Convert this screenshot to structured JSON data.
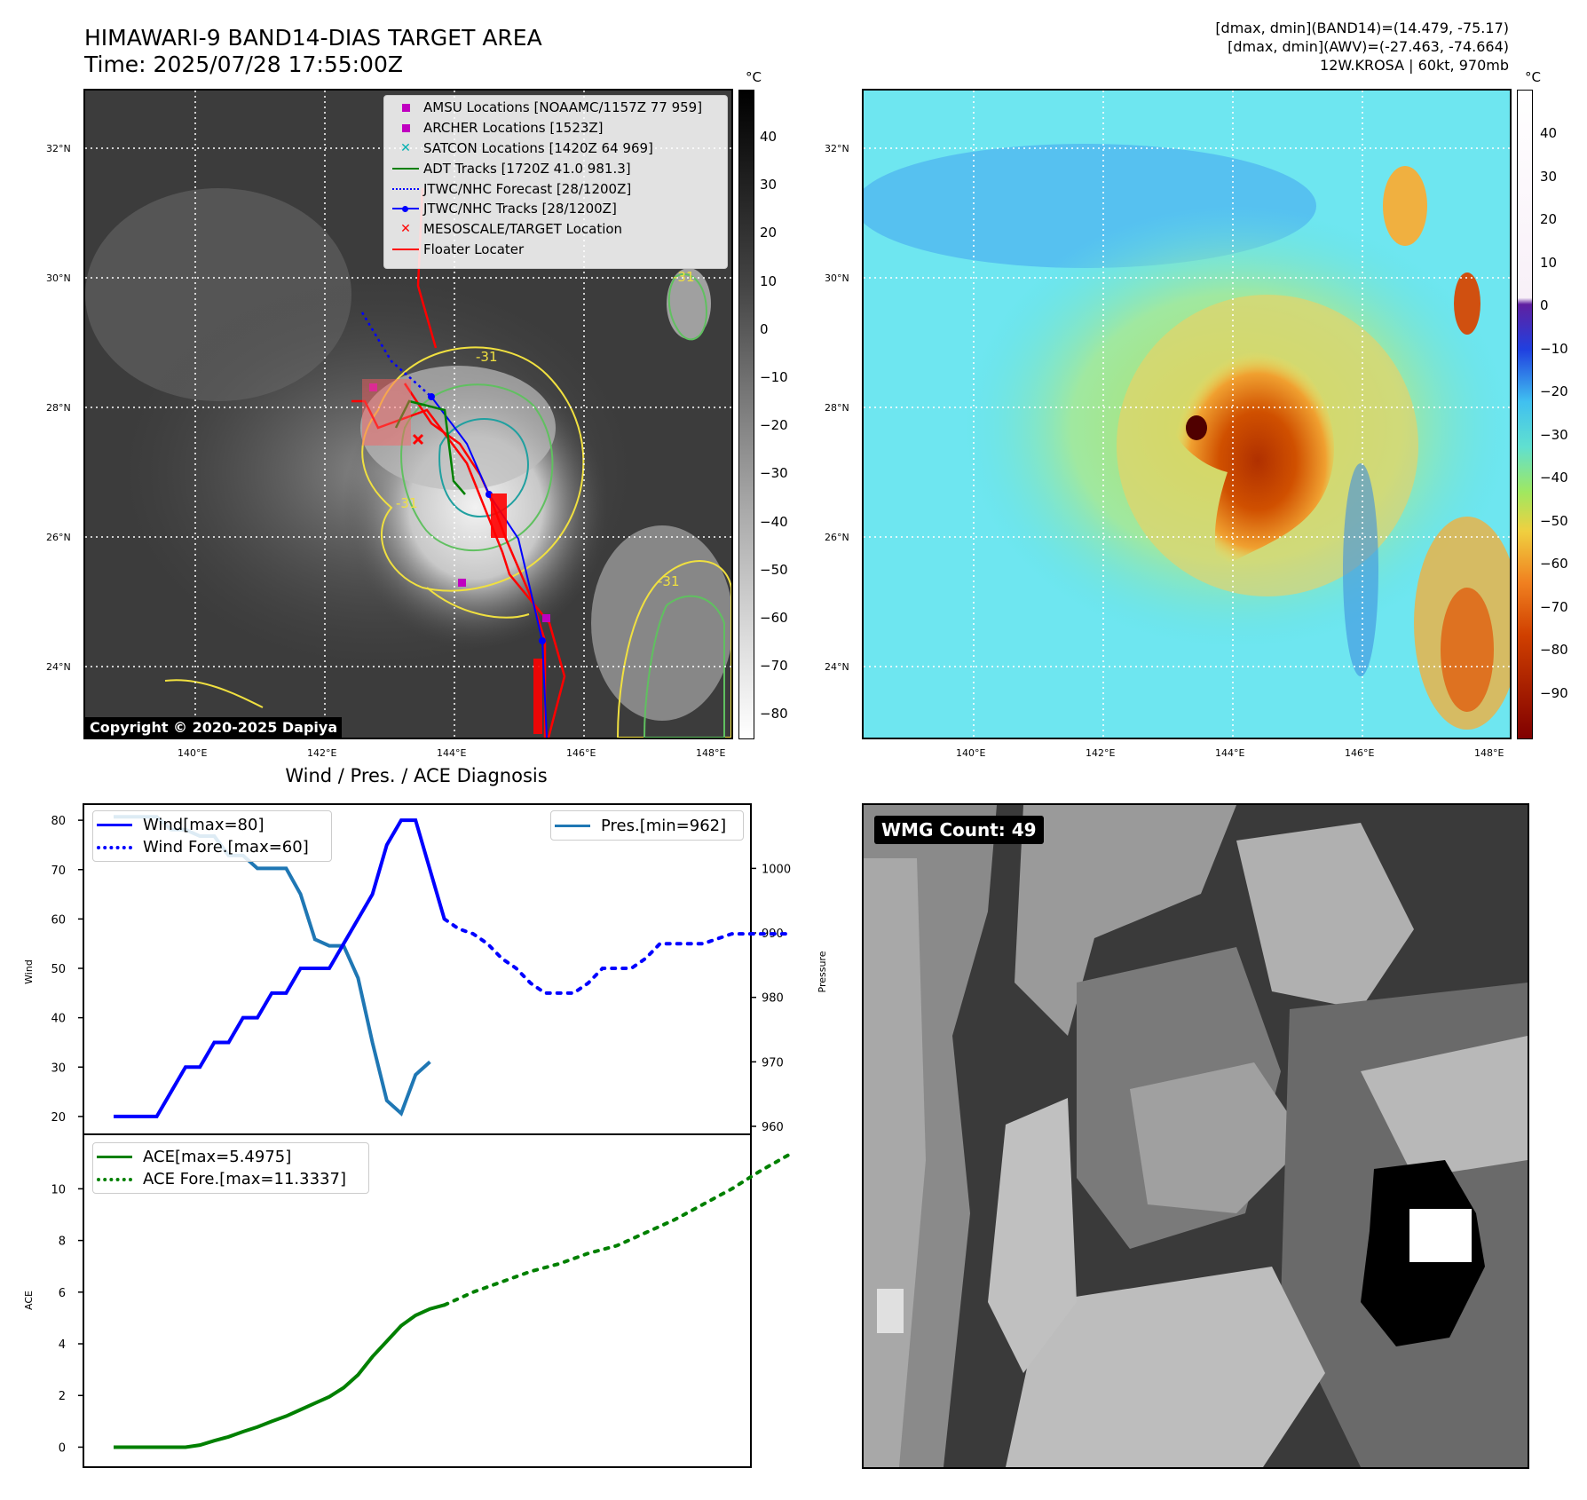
{
  "header": {
    "title_line1": "HIMAWARI-9 BAND14-DIAS TARGET AREA",
    "title_line2": "Time: 2025/07/28 17:55:00Z",
    "info_line1": "[dmax, dmin](BAND14)=(14.479, -75.17)",
    "info_line2": "[dmax, dmin](AWV)=(-27.463, -74.664)",
    "info_line3": "12W.KROSA | 60kt, 970mb"
  },
  "map": {
    "lat_labels": [
      "32°N",
      "30°N",
      "28°N",
      "26°N",
      "24°N"
    ],
    "lon_labels": [
      "140°E",
      "142°E",
      "144°E",
      "146°E",
      "148°E"
    ],
    "contour_label": "-31",
    "copyright": "Copyright © 2020-2025 Dapiya"
  },
  "colorbar_ir": {
    "unit": "°C",
    "ticks": [
      "40",
      "30",
      "20",
      "10",
      "0",
      "−10",
      "−20",
      "−30",
      "−40",
      "−50",
      "−60",
      "−70",
      "−80"
    ]
  },
  "colorbar_wv": {
    "unit": "°C",
    "ticks": [
      "40",
      "30",
      "20",
      "10",
      "0",
      "−10",
      "−20",
      "−30",
      "−40",
      "−50",
      "−60",
      "−70",
      "−80",
      "−90"
    ]
  },
  "map_legend": [
    {
      "label": "AMSU Locations [NOAAMC/1157Z 77 959]",
      "icon": "square-marker",
      "color": "#c000c0"
    },
    {
      "label": "ARCHER Locations [1523Z]",
      "icon": "square-marker",
      "color": "#c000c0"
    },
    {
      "label": "SATCON Locations [1420Z 64 969]",
      "icon": "x-marker",
      "color": "#00b0b0"
    },
    {
      "label": "ADT Tracks [1720Z 41.0 981.3]",
      "icon": "solid-line",
      "color": "#008000"
    },
    {
      "label": "JTWC/NHC Forecast [28/1200Z]",
      "icon": "dotted-line",
      "color": "#0000ff"
    },
    {
      "label": "JTWC/NHC Tracks [28/1200Z]",
      "icon": "line-dot",
      "color": "#0000ff"
    },
    {
      "label": "MESOSCALE/TARGET Location",
      "icon": "x-marker",
      "color": "#ff0000"
    },
    {
      "label": "Floater Locater",
      "icon": "solid-line",
      "color": "#ff0000"
    }
  ],
  "diagnosis": {
    "title": "Wind / Pres. / ACE Diagnosis",
    "wind_axis_label": "Wind",
    "pressure_axis_label": "Pressure",
    "ace_axis_label": "ACE",
    "legend_wind": "Wind[max=80]",
    "legend_wind_fore": "Wind Fore.[max=60]",
    "legend_pres": "Pres.[min=962]",
    "legend_ace": "ACE[max=5.4975]",
    "legend_ace_fore": "ACE Fore.[max=11.3337]"
  },
  "wmg": {
    "label": "WMG Count: 49"
  },
  "chart_data": [
    {
      "type": "line",
      "name_ref": "wind",
      "ylim": [
        18,
        82
      ],
      "yticks": [
        20,
        30,
        40,
        50,
        60,
        70,
        80
      ],
      "color": "#0000ff",
      "x": [
        0,
        1,
        2,
        3,
        4,
        5,
        6,
        7,
        8,
        9,
        10,
        11,
        12,
        13,
        14,
        15,
        16,
        17,
        18,
        19,
        20,
        21,
        22,
        23
      ],
      "values": [
        20,
        20,
        20,
        20,
        25,
        30,
        30,
        35,
        35,
        40,
        40,
        45,
        45,
        50,
        50,
        50,
        55,
        60,
        65,
        75,
        80,
        80,
        70,
        60
      ]
    },
    {
      "type": "line",
      "name_ref": "wind_forecast",
      "color": "#0000ff",
      "x": [
        23,
        24,
        25,
        26,
        27,
        28,
        29,
        30,
        31,
        32,
        33,
        34,
        35,
        36,
        37,
        38,
        39,
        40,
        41,
        42,
        43,
        44,
        45,
        46,
        47
      ],
      "values": [
        60,
        58,
        57,
        55,
        52,
        50,
        47,
        45,
        45,
        45,
        47,
        50,
        50,
        50,
        52,
        55,
        55,
        55,
        55,
        56,
        57,
        57,
        57,
        57,
        57
      ]
    },
    {
      "type": "line",
      "name_ref": "pressure",
      "ylim": [
        960,
        1009
      ],
      "yticks": [
        960,
        970,
        980,
        990,
        1000
      ],
      "color": "#1f77b4",
      "x": [
        0,
        1,
        2,
        3,
        4,
        5,
        6,
        7,
        8,
        9,
        10,
        11,
        12,
        13,
        14,
        15,
        16,
        17,
        18,
        19,
        20,
        21,
        22
      ],
      "values": [
        1008,
        1008,
        1008,
        1008,
        1006,
        1006,
        1005,
        1005,
        1002,
        1002,
        1000,
        1000,
        1000,
        996,
        989,
        988,
        988,
        983,
        973,
        964,
        962,
        968,
        970
      ]
    },
    {
      "type": "line",
      "name_ref": "ace",
      "ylim": [
        -0.5,
        11.8
      ],
      "yticks": [
        0,
        2,
        4,
        6,
        8,
        10
      ],
      "color": "#008000",
      "x": [
        0,
        1,
        2,
        3,
        4,
        5,
        6,
        7,
        8,
        9,
        10,
        11,
        12,
        13,
        14,
        15,
        16,
        17,
        18,
        19,
        20,
        21,
        22,
        23
      ],
      "values": [
        0,
        0,
        0,
        0,
        0,
        0,
        0.08,
        0.25,
        0.4,
        0.6,
        0.78,
        1.0,
        1.2,
        1.45,
        1.7,
        1.95,
        2.3,
        2.8,
        3.5,
        4.1,
        4.7,
        5.1,
        5.35,
        5.5
      ]
    },
    {
      "type": "line",
      "name_ref": "ace_forecast",
      "color": "#008000",
      "x": [
        23,
        25,
        27,
        29,
        31,
        33,
        35,
        37,
        39,
        41,
        43,
        45,
        47
      ],
      "values": [
        5.5,
        6.0,
        6.4,
        6.8,
        7.1,
        7.5,
        7.8,
        8.3,
        8.8,
        9.4,
        10.0,
        10.7,
        11.33
      ]
    }
  ]
}
